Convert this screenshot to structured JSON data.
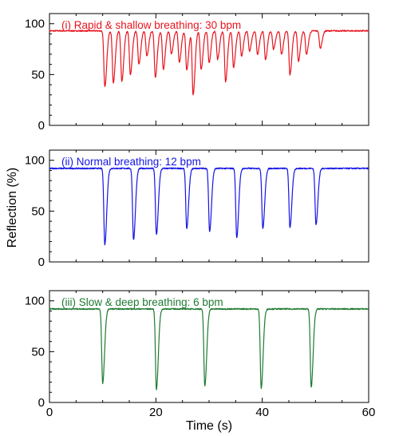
{
  "chart_data": {
    "type": "line",
    "xlabel": "Time (s)",
    "ylabel": "Reflection (%)",
    "xlim": [
      0,
      60
    ],
    "ylim": [
      0,
      110
    ],
    "x_ticks": [
      0,
      20,
      40,
      60
    ],
    "y_ticks": [
      0,
      50,
      100
    ],
    "grid": false,
    "panels": [
      {
        "title": "(i) Rapid & shallow breathing: 30 bpm",
        "color": "#e8141e",
        "baseline": 93,
        "dips": [
          {
            "x": 10.4,
            "min": 38
          },
          {
            "x": 12.0,
            "min": 42
          },
          {
            "x": 13.6,
            "min": 43
          },
          {
            "x": 15.2,
            "min": 50
          },
          {
            "x": 16.8,
            "min": 60
          },
          {
            "x": 18.3,
            "min": 68
          },
          {
            "x": 19.9,
            "min": 47
          },
          {
            "x": 21.4,
            "min": 55
          },
          {
            "x": 22.9,
            "min": 70
          },
          {
            "x": 24.4,
            "min": 62
          },
          {
            "x": 25.8,
            "min": 55
          },
          {
            "x": 27.0,
            "min": 30
          },
          {
            "x": 28.5,
            "min": 55
          },
          {
            "x": 30.0,
            "min": 62
          },
          {
            "x": 31.6,
            "min": 65
          },
          {
            "x": 33.1,
            "min": 43
          },
          {
            "x": 34.6,
            "min": 57
          },
          {
            "x": 36.1,
            "min": 68
          },
          {
            "x": 37.6,
            "min": 73
          },
          {
            "x": 39.1,
            "min": 70
          },
          {
            "x": 40.6,
            "min": 65
          },
          {
            "x": 42.1,
            "min": 75
          },
          {
            "x": 43.6,
            "min": 70
          },
          {
            "x": 45.2,
            "min": 50
          },
          {
            "x": 46.8,
            "min": 63
          },
          {
            "x": 48.3,
            "min": 70
          },
          {
            "x": 50.9,
            "min": 76
          }
        ]
      },
      {
        "title": "(ii) Normal breathing: 12 bpm",
        "color": "#1414e6",
        "baseline": 92,
        "dips": [
          {
            "x": 10.4,
            "min": 17
          },
          {
            "x": 15.8,
            "min": 22
          },
          {
            "x": 20.1,
            "min": 27
          },
          {
            "x": 25.8,
            "min": 33
          },
          {
            "x": 30.1,
            "min": 30
          },
          {
            "x": 35.2,
            "min": 24
          },
          {
            "x": 40.1,
            "min": 33
          },
          {
            "x": 45.2,
            "min": 34
          },
          {
            "x": 50.1,
            "min": 37
          }
        ]
      },
      {
        "title": "(iii) Slow & deep breathing: 6 bpm",
        "color": "#1e7a32",
        "baseline": 92,
        "dips": [
          {
            "x": 10.0,
            "min": 19
          },
          {
            "x": 20.1,
            "min": 13
          },
          {
            "x": 29.2,
            "min": 16
          },
          {
            "x": 39.8,
            "min": 14
          },
          {
            "x": 49.2,
            "min": 15
          }
        ]
      }
    ]
  }
}
